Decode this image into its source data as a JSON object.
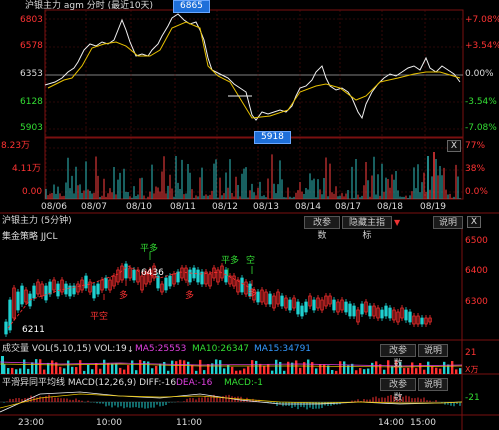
{
  "top_chart": {
    "title": "沪银主力 agm 分时 (最近10天)",
    "high_tag": "6865",
    "low_tag": "5918",
    "price_levels": [
      {
        "price": "6803",
        "pct": "+7.08%",
        "side": "up"
      },
      {
        "price": "6578",
        "pct": "+3.54%",
        "side": "up"
      },
      {
        "price": "6353",
        "pct": "0.00%",
        "side": "flat"
      },
      {
        "price": "6128",
        "pct": "-3.54%",
        "side": "dn"
      },
      {
        "price": "5903",
        "pct": "-7.08%",
        "side": "dn"
      }
    ],
    "volume_levels": [
      {
        "value": "8.23万",
        "pct": "77%"
      },
      {
        "value": "4.11万",
        "pct": "38%"
      },
      {
        "value": "0.00",
        "pct": "0.0%"
      }
    ],
    "dates": [
      "08/06",
      "08/07",
      "08/10",
      "08/11",
      "08/12",
      "08/13",
      "08/14",
      "08/17",
      "08/18",
      "08/19"
    ],
    "close_label": "X"
  },
  "mid_chart": {
    "title": "沪银主力 (5分钟)",
    "btn_params": "改参数",
    "btn_hide": "隐藏主指标",
    "btn_help": "说明",
    "strategy": "集金策略 JJCL",
    "y_labels": [
      "6500",
      "6400",
      "6300"
    ],
    "annotations": {
      "ping_kong": "平空",
      "duo1": "多",
      "ping_duo1": "平多",
      "duo2": "多",
      "ping_duo2": "平多",
      "kong": "空",
      "duo3": "多",
      "peak": "6436",
      "trough": "6211"
    }
  },
  "vol_panel": {
    "label": "成交量 VOL(5,10,15) VOL:19",
    "ma5": "MA5:25553",
    "ma10": "MA10:26347",
    "ma15": "MA15:34791",
    "btn_params": "改参数",
    "btn_help": "说明",
    "y_top": "21",
    "y_unit": "X万"
  },
  "macd_panel": {
    "label": "平滑异同平均线 MACD(12,26,9) DIFF:-16",
    "dea": "DEA:-16",
    "macd": "MACD:-1",
    "btn_params": "改参数",
    "btn_help": "说明",
    "y_top": "-21",
    "times": [
      "23:00",
      "10:00",
      "11:00",
      "14:00",
      "15:00"
    ]
  }
}
